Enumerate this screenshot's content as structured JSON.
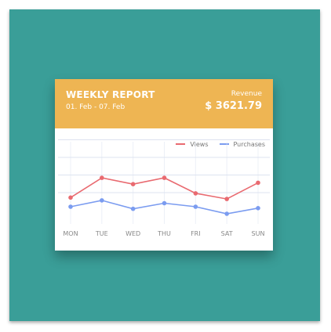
{
  "card": {
    "title": "WEEKLY REPORT",
    "date_range": "01. Feb - 07. Feb",
    "revenue_label": "Revenue",
    "revenue_value": "$ 3621.79"
  },
  "colors": {
    "backdrop": "#3a9e98",
    "header": "#eeb553",
    "views": "#e96a70",
    "purchases": "#7b9cf0",
    "grid": "#dde3f0"
  },
  "chart_data": {
    "type": "line",
    "title": "",
    "xlabel": "",
    "ylabel": "",
    "categories": [
      "MON",
      "TUE",
      "WED",
      "THU",
      "FRI",
      "SAT",
      "SUN"
    ],
    "series": [
      {
        "name": "Views",
        "values": [
          43,
          71,
          62,
          71,
          49,
          41,
          64
        ]
      },
      {
        "name": "Purchases",
        "values": [
          30,
          39,
          27,
          35,
          30,
          20,
          28
        ]
      }
    ],
    "ylim": [
      0,
      100
    ],
    "grid": true,
    "legend": "top-right"
  }
}
